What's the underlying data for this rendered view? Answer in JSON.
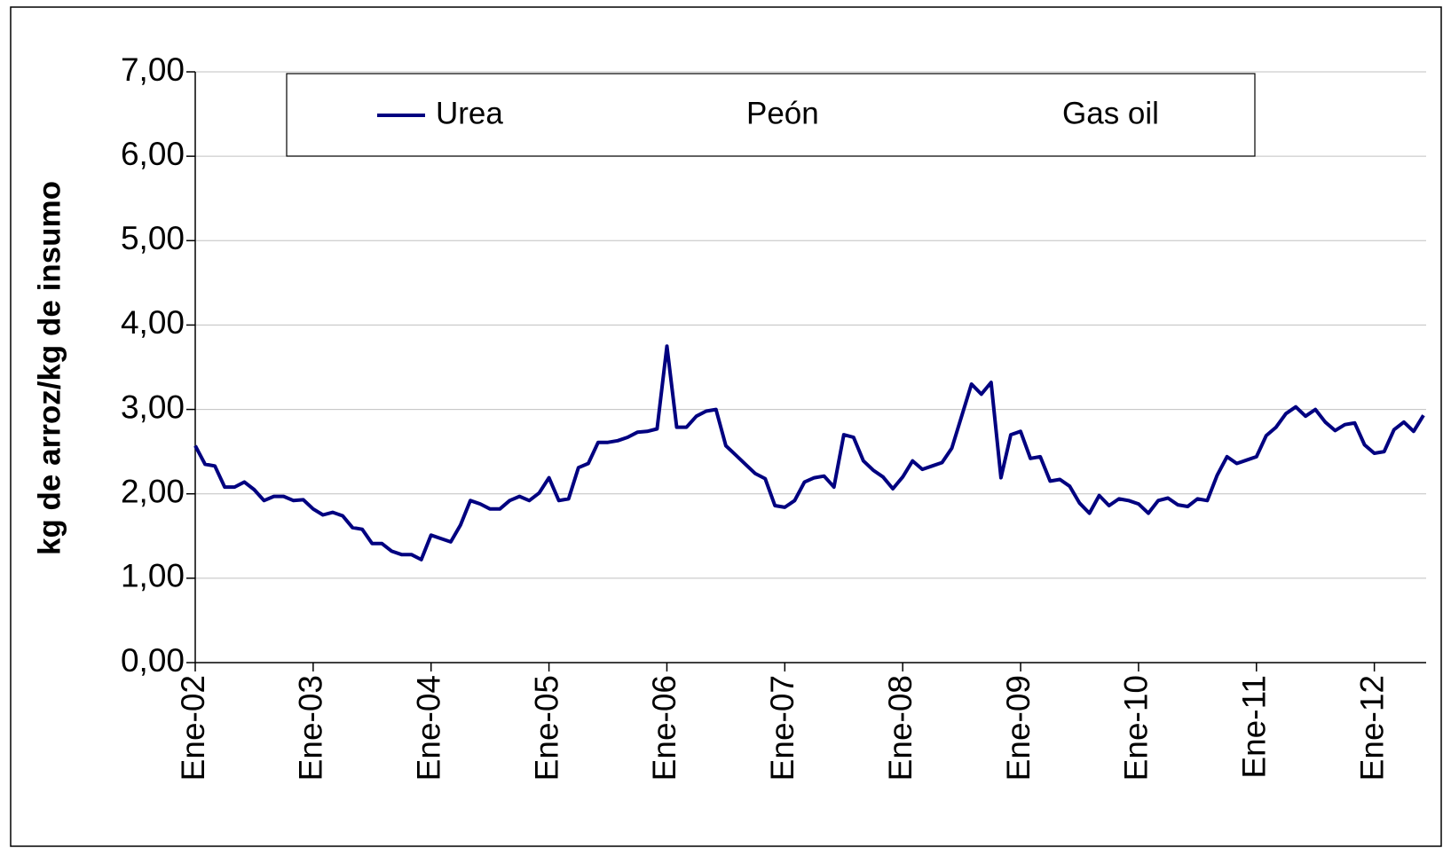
{
  "chart_data": {
    "type": "line",
    "y_label": "kg de arroz/kg de insumo",
    "categories": [
      "Ene-02",
      null,
      null,
      null,
      null,
      null,
      null,
      null,
      null,
      null,
      null,
      null,
      "Ene-03",
      null,
      null,
      null,
      null,
      null,
      null,
      null,
      null,
      null,
      null,
      null,
      "Ene-04",
      null,
      null,
      null,
      null,
      null,
      null,
      null,
      null,
      null,
      null,
      null,
      "Ene-05",
      null,
      null,
      null,
      null,
      null,
      null,
      null,
      null,
      null,
      null,
      null,
      "Ene-06",
      null,
      null,
      null,
      null,
      null,
      null,
      null,
      null,
      null,
      null,
      null,
      "Ene-07",
      null,
      null,
      null,
      null,
      null,
      null,
      null,
      null,
      null,
      null,
      null,
      "Ene-08",
      null,
      null,
      null,
      null,
      null,
      null,
      null,
      null,
      null,
      null,
      null,
      "Ene-09",
      null,
      null,
      null,
      null,
      null,
      null,
      null,
      null,
      null,
      null,
      null,
      "Ene-10",
      null,
      null,
      null,
      null,
      null,
      null,
      null,
      null,
      null,
      null,
      null,
      "Ene-11",
      null,
      null,
      null,
      null,
      null,
      null,
      null,
      null,
      null,
      null,
      null,
      "Ene-12",
      null,
      null,
      null,
      null,
      null
    ],
    "series": [
      {
        "name": "Urea",
        "color": "#000080",
        "values": [
          2.57,
          2.35,
          2.33,
          2.08,
          2.08,
          2.14,
          2.05,
          1.92,
          1.97,
          1.97,
          1.92,
          1.93,
          1.82,
          1.75,
          1.78,
          1.74,
          1.6,
          1.58,
          1.41,
          1.41,
          1.32,
          1.28,
          1.28,
          1.22,
          1.51,
          1.47,
          1.43,
          1.63,
          1.92,
          1.88,
          1.82,
          1.82,
          1.92,
          1.97,
          1.92,
          2.01,
          2.19,
          1.92,
          1.94,
          2.31,
          2.36,
          2.61,
          2.61,
          2.63,
          2.67,
          2.73,
          2.74,
          2.77,
          3.75,
          2.79,
          2.79,
          2.92,
          2.98,
          3.0,
          2.57,
          2.46,
          2.35,
          2.24,
          2.18,
          1.86,
          1.84,
          1.92,
          2.14,
          2.19,
          2.21,
          2.08,
          2.7,
          2.67,
          2.39,
          2.28,
          2.2,
          2.06,
          2.2,
          2.39,
          2.29,
          2.33,
          2.37,
          2.54,
          2.92,
          3.3,
          3.18,
          3.32,
          2.19,
          2.7,
          2.74,
          2.42,
          2.44,
          2.15,
          2.17,
          2.09,
          1.89,
          1.77,
          1.98,
          1.86,
          1.94,
          1.92,
          1.88,
          1.77,
          1.92,
          1.95,
          1.87,
          1.85,
          1.94,
          1.92,
          2.22,
          2.44,
          2.36,
          2.4,
          2.44,
          2.69,
          2.79,
          2.95,
          3.03,
          2.92,
          3.0,
          2.85,
          2.75,
          2.82,
          2.84,
          2.58,
          2.48,
          2.5,
          2.76,
          2.85,
          2.74,
          2.93
        ]
      },
      {
        "name": "Peón",
        "color": "#ffffff",
        "values": [
          null,
          null,
          null,
          null,
          null,
          null,
          null,
          null,
          null,
          null,
          null,
          null,
          null,
          null,
          null,
          null,
          null,
          null,
          null,
          null,
          null,
          null,
          null,
          null,
          null,
          null,
          null,
          null,
          null,
          null,
          null,
          null,
          null,
          null,
          null,
          null,
          null,
          null,
          null,
          null,
          null,
          null,
          null,
          null,
          null,
          null,
          null,
          null,
          null,
          null,
          null,
          null,
          null,
          null,
          null,
          null,
          null,
          null,
          null,
          null,
          null,
          null,
          null,
          null,
          null,
          null,
          null,
          null,
          null,
          null,
          null,
          null,
          null,
          null,
          null,
          null,
          null,
          null,
          null,
          null,
          null,
          null,
          null,
          null,
          null,
          null,
          null,
          null,
          null,
          null,
          null,
          null,
          null,
          null,
          null,
          null,
          null,
          null,
          null,
          null,
          null,
          null,
          null,
          null,
          null,
          null,
          null,
          null,
          null,
          null,
          null,
          null,
          null,
          null,
          null,
          null,
          null,
          null,
          null,
          null,
          null,
          null,
          null,
          null,
          null,
          null
        ]
      },
      {
        "name": "Gas oil",
        "color": "#ffffff",
        "values": [
          null,
          null,
          null,
          null,
          null,
          null,
          null,
          null,
          null,
          null,
          null,
          null,
          null,
          null,
          null,
          null,
          null,
          null,
          null,
          null,
          null,
          null,
          null,
          null,
          null,
          null,
          null,
          null,
          null,
          null,
          null,
          null,
          null,
          null,
          null,
          null,
          null,
          null,
          null,
          null,
          null,
          null,
          null,
          null,
          null,
          null,
          null,
          null,
          null,
          null,
          null,
          null,
          null,
          null,
          null,
          null,
          null,
          null,
          null,
          null,
          null,
          null,
          null,
          null,
          null,
          null,
          null,
          null,
          null,
          null,
          null,
          null,
          null,
          null,
          null,
          null,
          null,
          null,
          null,
          null,
          null,
          null,
          null,
          null,
          null,
          null,
          null,
          null,
          null,
          null,
          null,
          null,
          null,
          null,
          null,
          null,
          null,
          null,
          null,
          null,
          null,
          null,
          null,
          null,
          null,
          null,
          null,
          null,
          null,
          null,
          null,
          null,
          null,
          null,
          null,
          null,
          null,
          null,
          null,
          null,
          null,
          null,
          null,
          null,
          null,
          null
        ]
      }
    ],
    "ylim": [
      0,
      7
    ],
    "yticks": [
      {
        "value": 0,
        "label": "0,00"
      },
      {
        "value": 1,
        "label": "1,00"
      },
      {
        "value": 2,
        "label": "2,00"
      },
      {
        "value": 3,
        "label": "3,00"
      },
      {
        "value": 4,
        "label": "4,00"
      },
      {
        "value": 5,
        "label": "5,00"
      },
      {
        "value": 6,
        "label": "6,00"
      },
      {
        "value": 7,
        "label": "7,00"
      }
    ],
    "grid": true,
    "legend": "top"
  }
}
